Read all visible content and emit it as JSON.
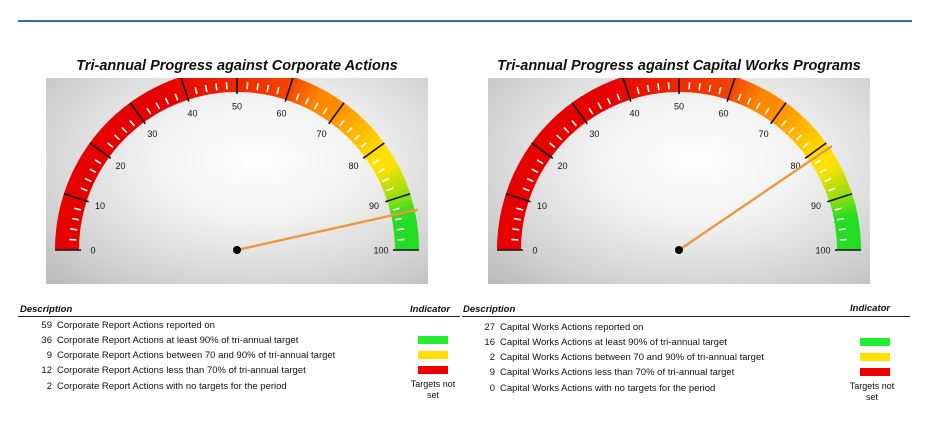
{
  "gauges": [
    {
      "title": "Tri-annual Progress against Corporate Actions",
      "chart_data": {
        "type": "gauge",
        "title": "Tri-annual Progress against Corporate Actions",
        "min": 0,
        "max": 100,
        "tick_labels": [
          "0",
          "10",
          "20",
          "30",
          "40",
          "50",
          "60",
          "70",
          "80",
          "90",
          "100"
        ],
        "value": 93,
        "bands": [
          {
            "from": 0,
            "to": 60,
            "color": "#e60000"
          },
          {
            "from": 60,
            "to": 75,
            "color": "#ff8a00"
          },
          {
            "from": 75,
            "to": 90,
            "color": "#ffe000"
          },
          {
            "from": 90,
            "to": 100,
            "color": "#22dd22"
          }
        ],
        "needle_color": "#e89a3c"
      }
    },
    {
      "title": "Tri-annual Progress against Capital Works Programs",
      "chart_data": {
        "type": "gauge",
        "title": "Tri-annual Progress against Capital Works Programs",
        "min": 0,
        "max": 100,
        "tick_labels": [
          "0",
          "10",
          "20",
          "30",
          "40",
          "50",
          "60",
          "70",
          "80",
          "90",
          "100"
        ],
        "value": 81,
        "bands": [
          {
            "from": 0,
            "to": 60,
            "color": "#e60000"
          },
          {
            "from": 60,
            "to": 75,
            "color": "#ff8a00"
          },
          {
            "from": 75,
            "to": 90,
            "color": "#ffe000"
          },
          {
            "from": 90,
            "to": 100,
            "color": "#22dd22"
          }
        ],
        "needle_color": "#e89a3c"
      }
    }
  ],
  "tables": [
    {
      "description_header": "Description",
      "indicator_header": "Indicator",
      "rows": [
        {
          "count": "59",
          "text": "Corporate Report Actions reported on",
          "indicator": "none"
        },
        {
          "count": "36",
          "text": "Corporate Report Actions at least 90% of tri-annual target",
          "indicator": "green",
          "color": "#22ee33"
        },
        {
          "count": "9",
          "text": "Corporate Report Actions between 70 and 90% of tri-annual target",
          "indicator": "yellow",
          "color": "#ffe000"
        },
        {
          "count": "12",
          "text": "Corporate Report Actions less than 70% of tri-annual target",
          "indicator": "red",
          "color": "#ee0000"
        },
        {
          "count": "2",
          "text": "Corporate Report Actions with no targets for the period",
          "indicator": "text",
          "indicator_text_1": "Targets not",
          "indicator_text_2": "set"
        }
      ]
    },
    {
      "description_header": "Description",
      "indicator_header": "Indicator",
      "rows": [
        {
          "count": "27",
          "text": "Capital Works Actions reported on",
          "indicator": "none"
        },
        {
          "count": "16",
          "text": "Capital Works Actions at least 90% of tri-annual target",
          "indicator": "green",
          "color": "#22ee33"
        },
        {
          "count": "2",
          "text": "Capital Works Actions between 70 and 90% of tri-annual target",
          "indicator": "yellow",
          "color": "#ffe000"
        },
        {
          "count": "9",
          "text": "Capital Works Actions less than 70% of tri-annual target",
          "indicator": "red",
          "color": "#ee0000"
        },
        {
          "count": "0",
          "text": "Capital Works Actions with no targets for the period",
          "indicator": "text",
          "indicator_text_1": "Targets not",
          "indicator_text_2": "set"
        }
      ]
    }
  ]
}
